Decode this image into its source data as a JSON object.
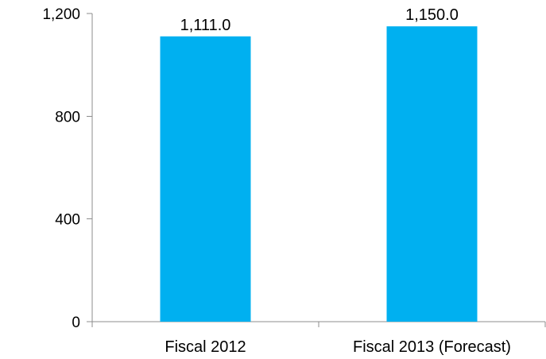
{
  "chart_data": {
    "type": "bar",
    "title": "",
    "xlabel": "",
    "ylabel": "",
    "categories": [
      "Fiscal 2012",
      "Fiscal 2013 (Forecast)"
    ],
    "values": [
      1111.0,
      1150.0
    ],
    "data_labels": [
      "1,111.0",
      "1,150.0"
    ],
    "ylim": [
      0,
      1200
    ],
    "yticks": [
      0,
      400,
      800,
      1200
    ],
    "ytick_labels": [
      "0",
      "400",
      "800",
      "1,200"
    ],
    "grid": false,
    "legend": "none",
    "bar_color": "#00b0f0"
  }
}
